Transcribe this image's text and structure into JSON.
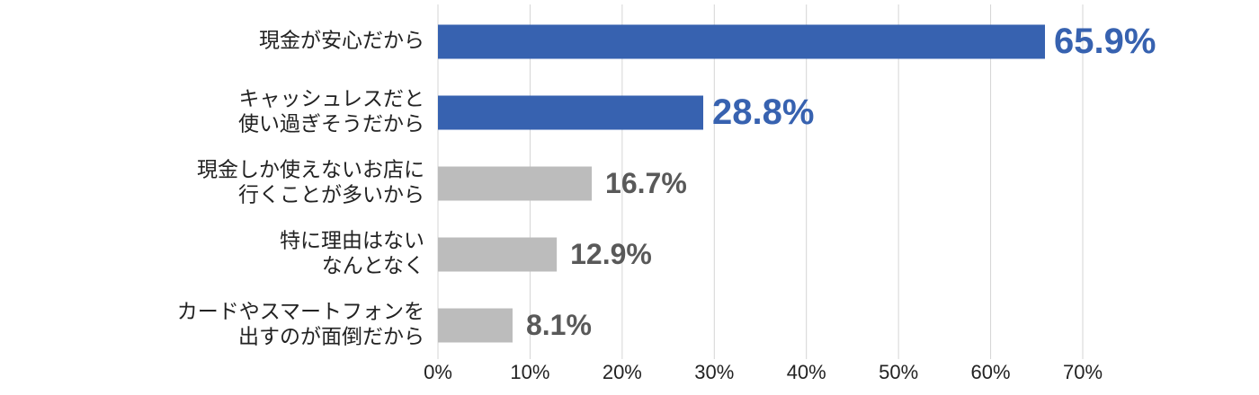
{
  "chart_data": {
    "type": "hbar",
    "categories": [
      "現金が安心だから",
      "キャッシュレスだと\n使い過ぎそうだから",
      "現金しか使えないお店に\n行くことが多いから",
      "特に理由はない\nなんとなく",
      "カードやスマートフォンを\n出すのが面倒だから"
    ],
    "values": [
      65.9,
      28.8,
      16.7,
      12.9,
      8.1
    ],
    "value_labels": [
      "65.9%",
      "28.8%",
      "16.7%",
      "12.9%",
      "8.1%"
    ],
    "colors": [
      "#3762b0",
      "#3762b0",
      "#bcbcbc",
      "#bcbcbc",
      "#bcbcbc"
    ],
    "label_colors": [
      "#3762b0",
      "#3762b0",
      "#595959",
      "#595959",
      "#595959"
    ],
    "xlim": [
      0,
      70
    ],
    "xticks": [
      {
        "value": 0,
        "label": "0%"
      },
      {
        "value": 10,
        "label": "10%"
      },
      {
        "value": 20,
        "label": "20%"
      },
      {
        "value": 30,
        "label": "30%"
      },
      {
        "value": 40,
        "label": "40%"
      },
      {
        "value": 50,
        "label": "50%"
      },
      {
        "value": 60,
        "label": "60%"
      },
      {
        "value": 70,
        "label": "70%"
      }
    ],
    "grid": true
  }
}
